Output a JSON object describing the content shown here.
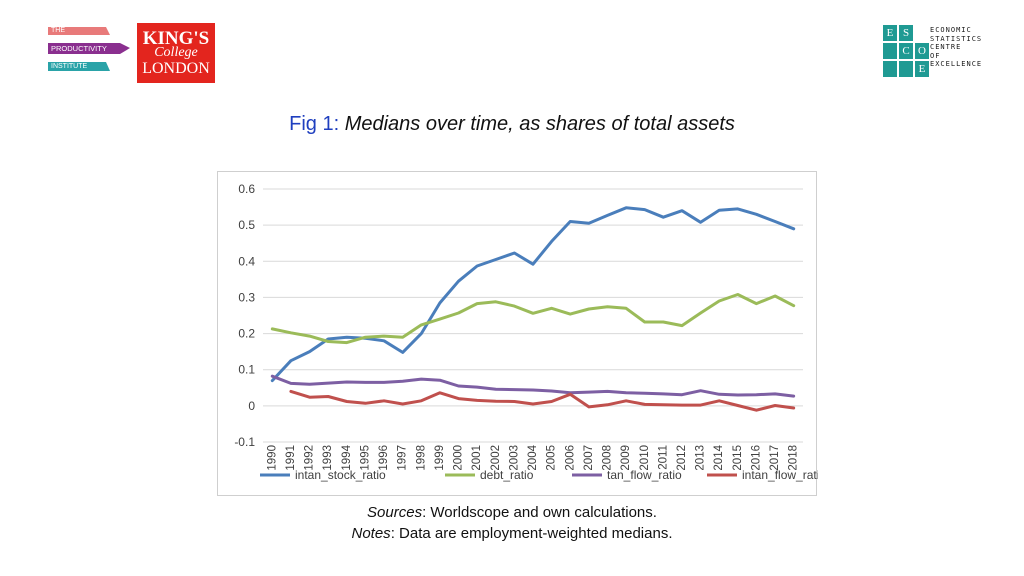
{
  "logos": {
    "productivity_institute": {
      "line1": "THE",
      "line2": "PRODUCTIVITY",
      "line3": "INSTITUTE"
    },
    "kings_college": {
      "line1": "KING'S",
      "line2": "College",
      "line3": "LONDON"
    },
    "escoe": {
      "cells": [
        "E",
        "S",
        "C",
        "O",
        "E"
      ],
      "text": [
        "ECONOMIC",
        "STATISTICS",
        "CENTRE",
        "OF",
        "EXCELLENCE"
      ]
    }
  },
  "title": {
    "fig": "Fig 1:",
    "text": "Medians over time, as shares of total assets"
  },
  "chart_data": {
    "type": "line",
    "x": [
      1990,
      1991,
      1992,
      1993,
      1994,
      1995,
      1996,
      1997,
      1998,
      1999,
      2000,
      2001,
      2002,
      2003,
      2004,
      2005,
      2006,
      2007,
      2008,
      2009,
      2010,
      2011,
      2012,
      2013,
      2014,
      2015,
      2016,
      2017,
      2018
    ],
    "ylim": [
      -0.1,
      0.6
    ],
    "yticks": [
      "0.6",
      "0.5",
      "0.4",
      "0.3",
      "0.2",
      "0.1",
      "0",
      "-0.1"
    ],
    "ytick_values": [
      0.6,
      0.5,
      0.4,
      0.3,
      0.2,
      0.1,
      0,
      -0.1
    ],
    "grid": true,
    "legend_position": "bottom",
    "series": [
      {
        "name": "intan_stock_ratio",
        "color": "#4a7ebb",
        "values": [
          0.07,
          0.125,
          0.15,
          0.185,
          0.19,
          0.187,
          0.18,
          0.148,
          0.2,
          0.285,
          0.345,
          0.387,
          0.405,
          0.423,
          0.392,
          0.455,
          0.51,
          0.505,
          0.527,
          0.548,
          0.543,
          0.522,
          0.54,
          0.508,
          0.541,
          0.545,
          0.53,
          0.51,
          0.49
        ]
      },
      {
        "name": "debt_ratio",
        "color": "#9bbb59",
        "values": [
          0.213,
          0.202,
          0.193,
          0.178,
          0.175,
          0.19,
          0.193,
          0.19,
          0.224,
          0.24,
          0.257,
          0.283,
          0.288,
          0.276,
          0.256,
          0.27,
          0.254,
          0.268,
          0.274,
          0.27,
          0.232,
          0.232,
          0.222,
          0.257,
          0.29,
          0.308,
          0.283,
          0.304,
          0.277
        ]
      },
      {
        "name": "tan_flow_ratio",
        "color": "#7d5fa3",
        "values": [
          0.082,
          0.062,
          0.06,
          0.063,
          0.066,
          0.065,
          0.065,
          0.068,
          0.074,
          0.071,
          0.055,
          0.052,
          0.046,
          0.045,
          0.044,
          0.041,
          0.036,
          0.038,
          0.04,
          0.036,
          0.035,
          0.033,
          0.031,
          0.042,
          0.032,
          0.03,
          0.031,
          0.033,
          0.027
        ]
      },
      {
        "name": "intan_flow_ratio",
        "color": "#c0504d",
        "values": [
          null,
          0.04,
          0.024,
          0.026,
          0.012,
          0.007,
          0.014,
          0.005,
          0.014,
          0.036,
          0.02,
          0.015,
          0.013,
          0.012,
          0.005,
          0.012,
          0.032,
          -0.003,
          0.003,
          0.014,
          0.004,
          0.003,
          0.002,
          0.002,
          0.014,
          0.001,
          -0.012,
          0.001,
          -0.006
        ]
      }
    ]
  },
  "notes": {
    "sources_label": "Sources",
    "sources_text": ": Worldscope and own calculations.",
    "notes_label": "Notes",
    "notes_text": ": Data are employment-weighted medians."
  }
}
